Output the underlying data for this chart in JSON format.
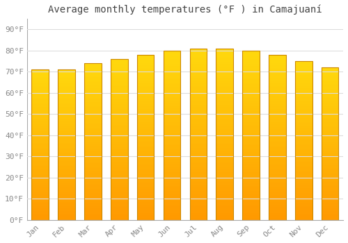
{
  "title": "Average monthly temperatures (°F ) in Camajuaní",
  "months": [
    "Jan",
    "Feb",
    "Mar",
    "Apr",
    "May",
    "Jun",
    "Jul",
    "Aug",
    "Sep",
    "Oct",
    "Nov",
    "Dec"
  ],
  "values": [
    71,
    71,
    74,
    76,
    78,
    80,
    81,
    81,
    80,
    78,
    75,
    72
  ],
  "bar_color_top": "#FFD000",
  "bar_color_bottom": "#FFA000",
  "bar_edge_color": "#CC8800",
  "background_color": "#FFFFFF",
  "grid_color": "#DDDDDD",
  "yticks": [
    0,
    10,
    20,
    30,
    40,
    50,
    60,
    70,
    80,
    90
  ],
  "ylim": [
    0,
    95
  ],
  "title_fontsize": 10,
  "tick_fontsize": 8,
  "font_family": "monospace"
}
